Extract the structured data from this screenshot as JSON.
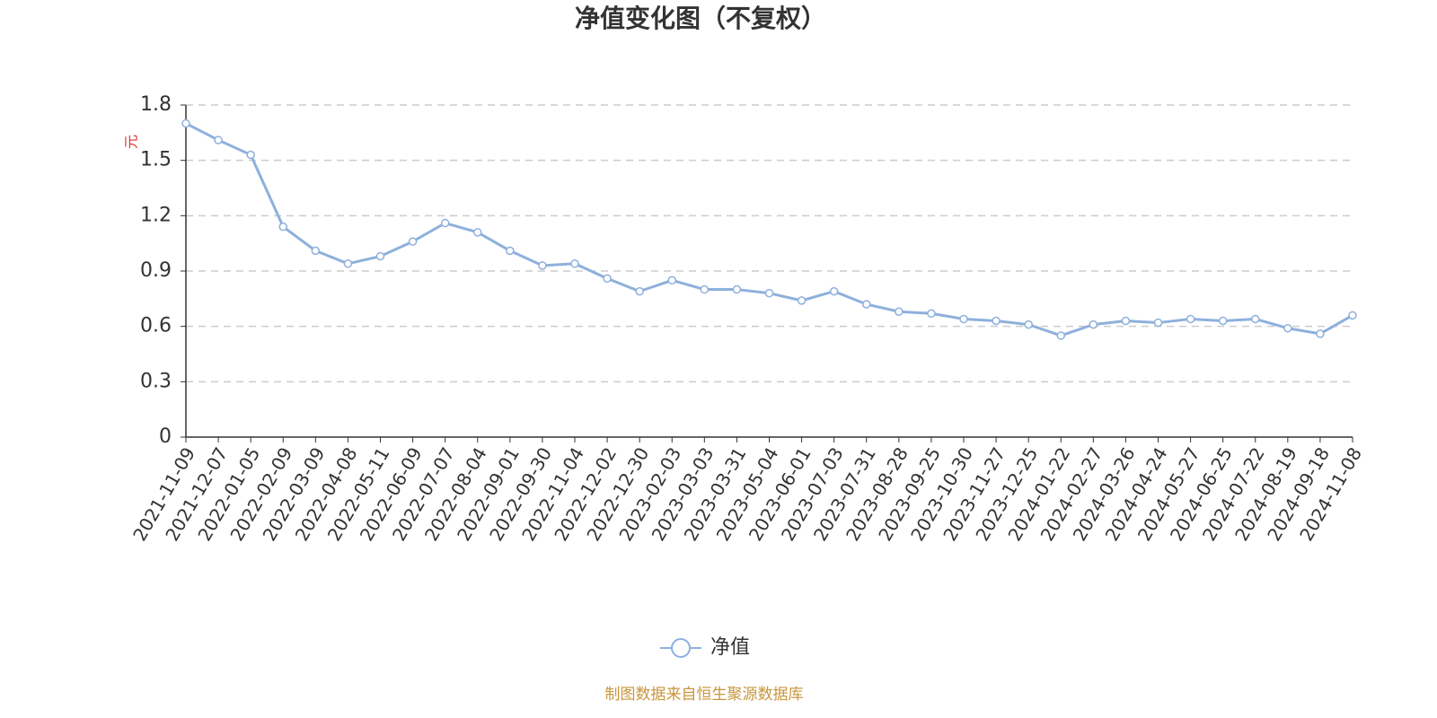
{
  "chart_data": {
    "type": "line",
    "title": "净值变化图（不复权）",
    "y_label": "元",
    "source": "制图数据来自恒生聚源数据库",
    "x": [
      "2021-11-09",
      "2021-12-07",
      "2022-01-05",
      "2022-02-09",
      "2022-03-09",
      "2022-04-08",
      "2022-05-11",
      "2022-06-09",
      "2022-07-07",
      "2022-08-04",
      "2022-09-01",
      "2022-09-30",
      "2022-11-04",
      "2022-12-02",
      "2022-12-30",
      "2023-02-03",
      "2023-03-03",
      "2023-03-31",
      "2023-05-04",
      "2023-06-01",
      "2023-07-03",
      "2023-07-31",
      "2023-08-28",
      "2023-09-25",
      "2023-10-30",
      "2023-11-27",
      "2023-12-25",
      "2024-01-22",
      "2024-02-27",
      "2024-03-26",
      "2024-04-24",
      "2024-05-27",
      "2024-06-25",
      "2024-07-22",
      "2024-08-19",
      "2024-09-18",
      "2024-11-08"
    ],
    "series": [
      {
        "name": "净值",
        "color": "#8eb0dc",
        "values": [
          1.7,
          1.61,
          1.53,
          1.14,
          1.01,
          0.94,
          0.98,
          1.06,
          1.16,
          1.11,
          1.01,
          0.93,
          0.94,
          0.86,
          0.79,
          0.85,
          0.8,
          0.8,
          0.78,
          0.74,
          0.79,
          0.72,
          0.68,
          0.67,
          0.64,
          0.63,
          0.61,
          0.55,
          0.61,
          0.63,
          0.62,
          0.64,
          0.63,
          0.64,
          0.59,
          0.56,
          0.66
        ]
      }
    ],
    "ylim": [
      0,
      1.8
    ],
    "yticks": [
      0,
      0.3,
      0.6,
      0.9,
      1.2,
      1.5,
      1.8
    ],
    "grid": true
  }
}
